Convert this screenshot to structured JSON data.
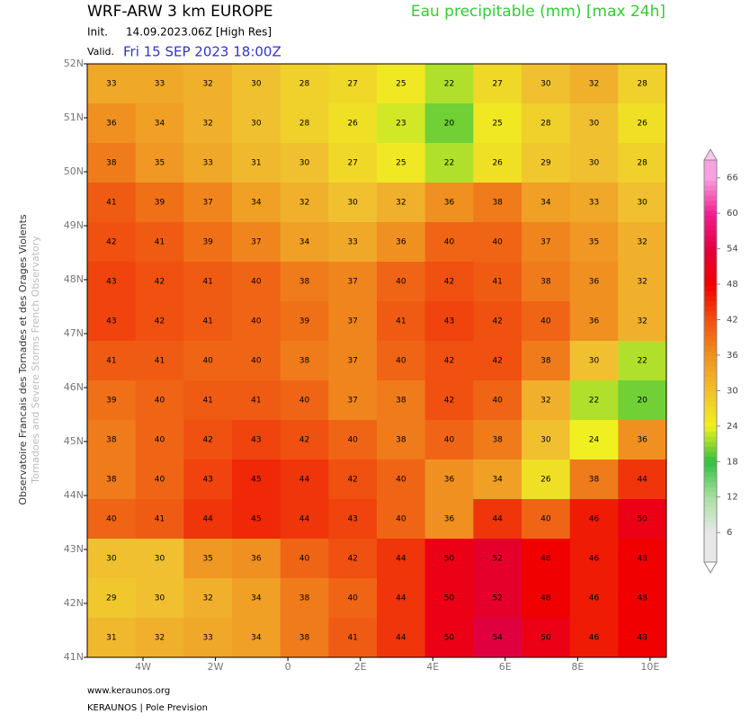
{
  "header": {
    "model": "WRF-ARW 3 km EUROPE",
    "parameter": "Eau precipitable (mm) [max 24h]",
    "init_label": "Init.",
    "init": "14.09.2023.06Z [High Res]",
    "valid_label": "Valid.",
    "valid": "Fri 15 SEP 2023 18:00Z"
  },
  "side": {
    "line1": "Observatoire Francais des Tornades et des Orages Violents",
    "line2": "Tornadoes and Severe Storms French Observatory"
  },
  "footer": {
    "url": "www.keraunos.org",
    "brand": "KERAUNOS | Pole Prevision"
  },
  "map": {
    "lonlim": [
      -5.54,
      10.45
    ],
    "latlim": [
      41,
      52
    ],
    "lonticks": [
      {
        "value": -4,
        "label": "4W"
      },
      {
        "value": -2,
        "label": "2W"
      },
      0,
      {
        "value": 2,
        "label": "2E"
      },
      {
        "value": 4,
        "label": "4E"
      },
      {
        "value": 6,
        "label": "6E"
      },
      {
        "value": 8,
        "label": "8E"
      },
      {
        "value": 10,
        "label": "10E"
      }
    ],
    "latticks": [
      {
        "value": 52,
        "label": "52N"
      },
      {
        "value": 51,
        "label": "51N"
      },
      {
        "value": 50,
        "label": "50N"
      },
      {
        "value": 49,
        "label": "49N"
      },
      {
        "value": 48,
        "label": "48N"
      },
      {
        "value": 47,
        "label": "47N"
      },
      {
        "value": 46,
        "label": "46N"
      },
      {
        "value": 45,
        "label": "45N"
      },
      {
        "value": 44,
        "label": "44N"
      },
      {
        "value": 43,
        "label": "43N"
      },
      {
        "value": 42,
        "label": "42N"
      },
      {
        "value": 41,
        "label": "41N"
      }
    ],
    "grid": [
      [
        33,
        33,
        32,
        30,
        28,
        27,
        25,
        22,
        27,
        30,
        32,
        28
      ],
      [
        36,
        34,
        32,
        30,
        28,
        26,
        23,
        20,
        25,
        28,
        30,
        26
      ],
      [
        38,
        35,
        33,
        31,
        30,
        27,
        25,
        22,
        26,
        29,
        30,
        28
      ],
      [
        41,
        39,
        37,
        34,
        32,
        30,
        32,
        36,
        38,
        34,
        33,
        30
      ],
      [
        42,
        41,
        39,
        37,
        34,
        33,
        36,
        40,
        40,
        37,
        35,
        32
      ],
      [
        43,
        42,
        41,
        40,
        38,
        37,
        40,
        42,
        41,
        38,
        36,
        32
      ],
      [
        43,
        42,
        41,
        40,
        39,
        37,
        41,
        43,
        42,
        40,
        36,
        32
      ],
      [
        41,
        41,
        40,
        40,
        38,
        37,
        40,
        42,
        42,
        38,
        30,
        22
      ],
      [
        39,
        40,
        41,
        41,
        40,
        37,
        38,
        42,
        40,
        32,
        22,
        20
      ],
      [
        38,
        40,
        42,
        43,
        42,
        40,
        38,
        40,
        38,
        30,
        24,
        36
      ],
      [
        38,
        40,
        43,
        45,
        44,
        42,
        40,
        36,
        34,
        26,
        38,
        44
      ],
      [
        40,
        41,
        44,
        45,
        44,
        43,
        40,
        36,
        44,
        40,
        46,
        50
      ],
      [
        30,
        30,
        35,
        36,
        40,
        42,
        44,
        50,
        52,
        48,
        46,
        48
      ],
      [
        29,
        30,
        32,
        34,
        38,
        40,
        44,
        50,
        52,
        48,
        46,
        48
      ],
      [
        31,
        32,
        33,
        34,
        38,
        41,
        44,
        50,
        54,
        50,
        46,
        48
      ]
    ]
  },
  "colorbar": {
    "lim": [
      1,
      69
    ],
    "ticks": [
      6,
      12,
      18,
      24,
      30,
      36,
      42,
      48,
      54,
      60,
      66
    ],
    "colors": [
      "#e8e8e8",
      "#a8e0a0",
      "#30c040",
      "#f0f020",
      "#f0c030",
      "#f09020",
      "#f05010",
      "#f00000",
      "#e00040",
      "#f02090",
      "#f8a0e0"
    ]
  }
}
